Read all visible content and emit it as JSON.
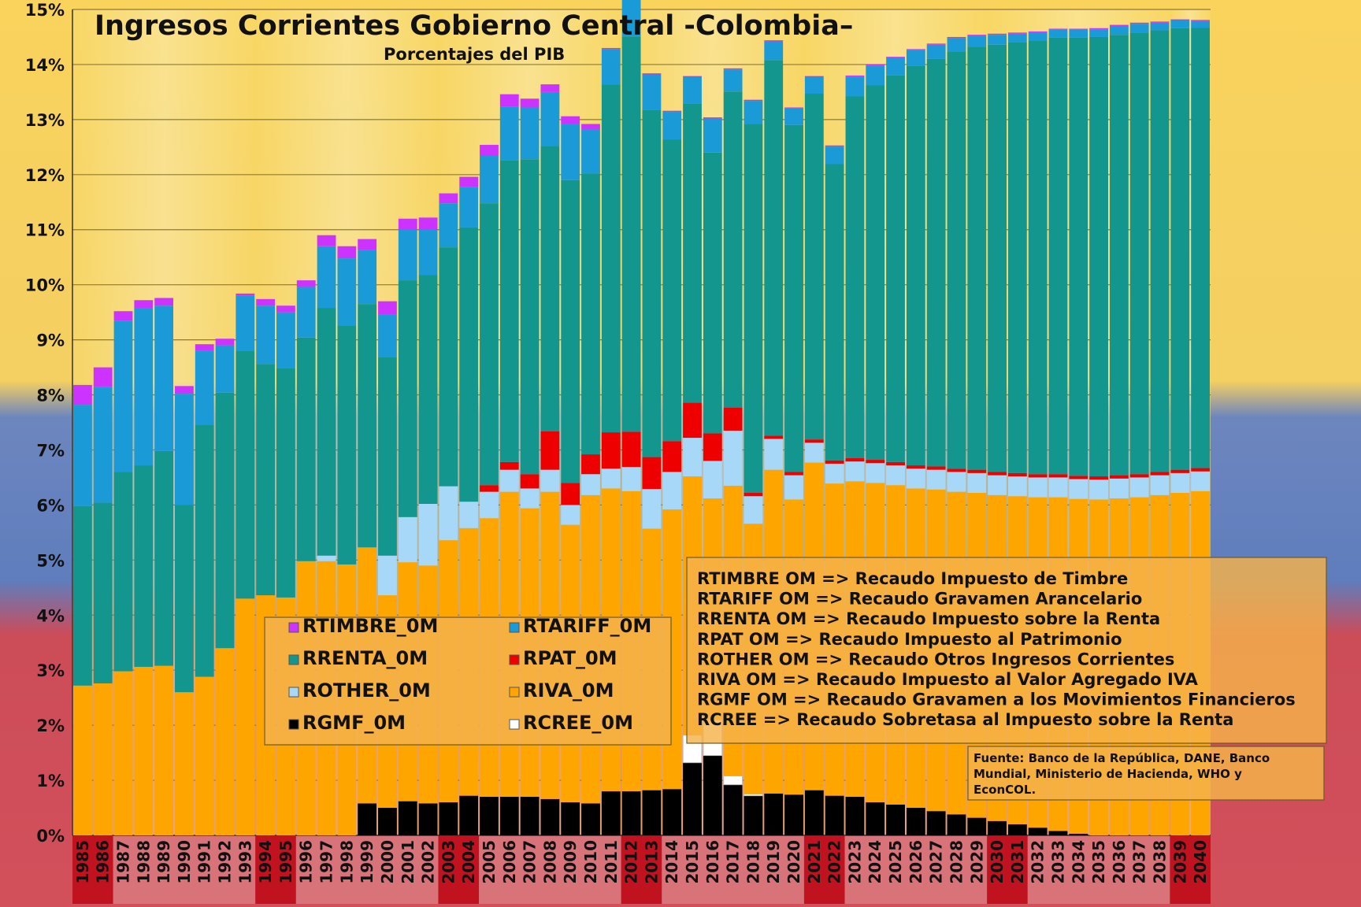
{
  "chart_data": {
    "type": "bar",
    "stacked": true,
    "title": "Ingresos Corrientes Gobierno Central -Colombia–",
    "subtitle": "Porcentajes del PIB",
    "ylim": [
      0,
      15
    ],
    "ytick_labels": [
      "0%",
      "1%",
      "2%",
      "3%",
      "4%",
      "5%",
      "6%",
      "7%",
      "8%",
      "9%",
      "10%",
      "11%",
      "12%",
      "13%",
      "14%",
      "15%"
    ],
    "categories": [
      "1985",
      "1986",
      "1987",
      "1988",
      "1989",
      "1990",
      "1991",
      "1992",
      "1993",
      "1994",
      "1995",
      "1996",
      "1997",
      "1998",
      "1999",
      "2000",
      "2001",
      "2002",
      "2003",
      "2004",
      "2005",
      "2006",
      "2007",
      "2008",
      "2009",
      "2010",
      "2011",
      "2012",
      "2013",
      "2014",
      "2015",
      "2016",
      "2017",
      "2018",
      "2019",
      "2020",
      "2021",
      "2022",
      "2023",
      "2024",
      "2025",
      "2026",
      "2027",
      "2028",
      "2029",
      "2030",
      "2031",
      "2032",
      "2033",
      "2034",
      "2035",
      "2036",
      "2037",
      "2038",
      "2039",
      "2040"
    ],
    "series": [
      {
        "name": "RGMF_0M",
        "color": "#000000",
        "values": [
          0,
          0,
          0,
          0,
          0,
          0,
          0,
          0,
          0,
          0,
          0,
          0,
          0,
          0,
          0.58,
          0.5,
          0.62,
          0.58,
          0.6,
          0.72,
          0.7,
          0.7,
          0.7,
          0.66,
          0.6,
          0.58,
          0.8,
          0.8,
          0.82,
          0.84,
          1.32,
          1.45,
          0.92,
          0.72,
          0.76,
          0.74,
          0.82,
          0.72,
          0.7,
          0.6,
          0.56,
          0.5,
          0.44,
          0.38,
          0.32,
          0.26,
          0.2,
          0.14,
          0.08,
          0.03,
          0,
          0,
          0,
          0,
          0,
          0
        ]
      },
      {
        "name": "RCREE_0M",
        "color": "#ffffff",
        "values": [
          0,
          0,
          0,
          0,
          0,
          0,
          0,
          0,
          0,
          0,
          0,
          0,
          0,
          0,
          0,
          0,
          0,
          0,
          0,
          0,
          0,
          0,
          0,
          0,
          0,
          0,
          0,
          0,
          0,
          0,
          0.5,
          0.65,
          0.16,
          0.03,
          0,
          0,
          0,
          0,
          0,
          0,
          0,
          0,
          0,
          0,
          0,
          0,
          0,
          0,
          0,
          0,
          0,
          0,
          0,
          0,
          0,
          0
        ]
      },
      {
        "name": "RIVA_0M",
        "color": "#ffa500",
        "values": [
          2.72,
          2.76,
          2.98,
          3.06,
          3.08,
          2.6,
          2.88,
          3.4,
          4.3,
          4.36,
          4.32,
          4.98,
          4.98,
          4.92,
          4.65,
          3.86,
          4.34,
          4.32,
          4.76,
          4.86,
          5.06,
          5.54,
          5.24,
          5.58,
          5.04,
          5.6,
          5.5,
          5.45,
          4.75,
          5.08,
          4.7,
          4.02,
          5.27,
          4.91,
          5.88,
          5.36,
          5.95,
          5.67,
          5.73,
          5.8,
          5.8,
          5.8,
          5.84,
          5.86,
          5.9,
          5.92,
          5.96,
          6.0,
          6.06,
          6.08,
          6.1,
          6.12,
          6.14,
          6.18,
          6.22,
          6.25
        ]
      },
      {
        "name": "ROTHER_0M",
        "color": "#a8d8f8",
        "values": [
          0,
          0,
          0,
          0,
          0,
          0,
          0,
          0,
          0,
          0,
          0,
          0,
          0.1,
          0,
          0,
          0.72,
          0.82,
          1.12,
          0.98,
          0.48,
          0.48,
          0.4,
          0.36,
          0.4,
          0.36,
          0.38,
          0.36,
          0.44,
          0.72,
          0.68,
          0.7,
          0.68,
          1.0,
          0.5,
          0.56,
          0.44,
          0.36,
          0.36,
          0.36,
          0.36,
          0.36,
          0.36,
          0.36,
          0.36,
          0.36,
          0.36,
          0.36,
          0.36,
          0.36,
          0.36,
          0.36,
          0.36,
          0.36,
          0.36,
          0.36,
          0.36
        ]
      },
      {
        "name": "RPAT_0M",
        "color": "#ee0000",
        "values": [
          0,
          0,
          0,
          0,
          0,
          0,
          0,
          0,
          0,
          0,
          0,
          0,
          0,
          0,
          0,
          0,
          0,
          0,
          0,
          0,
          0.12,
          0.14,
          0.26,
          0.7,
          0.4,
          0.36,
          0.66,
          0.64,
          0.58,
          0.56,
          0.64,
          0.5,
          0.42,
          0.06,
          0.06,
          0.06,
          0.06,
          0.06,
          0.06,
          0.06,
          0.06,
          0.06,
          0.06,
          0.06,
          0.06,
          0.06,
          0.06,
          0.06,
          0.06,
          0.06,
          0.06,
          0.06,
          0.06,
          0.06,
          0.06,
          0.06
        ]
      },
      {
        "name": "RRENTA_0M",
        "color": "#13968e",
        "values": [
          3.26,
          3.28,
          3.62,
          3.66,
          3.9,
          3.4,
          4.58,
          4.64,
          4.5,
          4.2,
          4.16,
          4.06,
          4.5,
          4.34,
          4.42,
          3.6,
          4.3,
          4.16,
          4.34,
          4.98,
          5.12,
          5.48,
          5.72,
          5.18,
          5.5,
          5.1,
          6.32,
          7.18,
          6.31,
          5.48,
          5.43,
          5.1,
          5.74,
          6.7,
          6.82,
          6.3,
          6.28,
          5.38,
          6.57,
          6.8,
          7.02,
          7.26,
          7.4,
          7.58,
          7.68,
          7.76,
          7.82,
          7.88,
          7.93,
          7.96,
          7.98,
          8.0,
          8.02,
          8.02,
          8.02,
          8.0
        ]
      },
      {
        "name": "RTARIFF_0M",
        "color": "#1a9ad6",
        "values": [
          1.84,
          2.1,
          2.74,
          2.86,
          2.64,
          2.02,
          1.34,
          0.86,
          1.0,
          1.06,
          1.02,
          0.92,
          1.12,
          1.22,
          0.98,
          0.78,
          0.92,
          0.82,
          0.8,
          0.74,
          0.86,
          0.98,
          0.94,
          0.98,
          1.02,
          0.8,
          0.64,
          0.92,
          0.64,
          0.5,
          0.48,
          0.62,
          0.4,
          0.42,
          0.34,
          0.3,
          0.3,
          0.32,
          0.36,
          0.36,
          0.32,
          0.28,
          0.26,
          0.24,
          0.2,
          0.18,
          0.16,
          0.14,
          0.14,
          0.14,
          0.14,
          0.16,
          0.16,
          0.14,
          0.14,
          0.12
        ]
      },
      {
        "name": "RTIMBRE_0M",
        "color": "#cc33ff",
        "values": [
          0.36,
          0.36,
          0.18,
          0.14,
          0.14,
          0.14,
          0.12,
          0.12,
          0.04,
          0.12,
          0.12,
          0.12,
          0.2,
          0.22,
          0.2,
          0.24,
          0.2,
          0.22,
          0.18,
          0.18,
          0.2,
          0.22,
          0.16,
          0.14,
          0.14,
          0.1,
          0.02,
          0.02,
          0.02,
          0.02,
          0.02,
          0.02,
          0.02,
          0.02,
          0.02,
          0.02,
          0.02,
          0.02,
          0.02,
          0.02,
          0.02,
          0.02,
          0.02,
          0.02,
          0.02,
          0.02,
          0.02,
          0.02,
          0.02,
          0.02,
          0.02,
          0.02,
          0.02,
          0.02,
          0.02,
          0.02
        ]
      }
    ],
    "legend": {
      "placement": "lower-left",
      "entries": [
        {
          "name": "RTIMBRE_0M",
          "color": "#cc33ff"
        },
        {
          "name": "RTARIFF_0M",
          "color": "#1a9ad6"
        },
        {
          "name": "RRENTA_0M",
          "color": "#13968e"
        },
        {
          "name": "RPAT_0M",
          "color": "#ee0000"
        },
        {
          "name": "ROTHER_0M",
          "color": "#a8d8f8"
        },
        {
          "name": "RIVA_0M",
          "color": "#ffa500"
        },
        {
          "name": "RGMF_0M",
          "color": "#000000"
        },
        {
          "name": "RCREE_0M",
          "color": "#ffffff"
        }
      ]
    },
    "description_lines": [
      "RTIMBRE OM => Recaudo Impuesto de Timbre",
      "RTARIFF OM => Recaudo Gravamen Arancelario",
      "RRENTA OM => Recaudo Impuesto sobre la Renta",
      "RPAT OM => Recaudo Impuesto al Patrimonio",
      "ROTHER OM => Recaudo Otros Ingresos Corrientes",
      "RIVA OM => Recaudo Impuesto al Valor Agregado IVA",
      "RGMF OM => Recaudo Gravamen a los Movimientos Financieros",
      "RCREE => Recaudo Sobretasa al Impuesto sobre la Renta"
    ],
    "source_lines": [
      "Fuente: Banco de la República, DANE, Banco",
      "Mundial, Ministerio de Hacienda, WHO y",
      "EconCOL."
    ],
    "grid": true,
    "colors": {
      "background_yellow": "#f7d15a",
      "background_blue": "#4f6fb3",
      "background_red": "#d6343f",
      "year_band_red": "#c1121f"
    }
  }
}
